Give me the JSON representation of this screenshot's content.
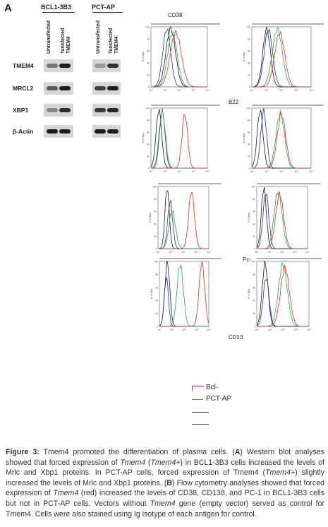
{
  "panel_a": {
    "letter": "A",
    "groups": [
      {
        "label": "BCL1-3B3"
      },
      {
        "label": "PCT-AP"
      }
    ],
    "columns": [
      "Untransfected",
      "Tansfected TMEM4",
      "Untransfected",
      "Tansfected TMEM4"
    ],
    "rows": [
      {
        "label": "TMEM4",
        "intensities": [
          0.45,
          0.95,
          0.25,
          0.85
        ]
      },
      {
        "label": "MRCL2",
        "intensities": [
          0.6,
          0.95,
          0.75,
          0.95
        ]
      },
      {
        "label": "XBP1",
        "intensities": [
          0.35,
          0.85,
          0.8,
          0.9
        ]
      },
      {
        "label": "β-Actin",
        "intensities": [
          0.95,
          0.95,
          0.95,
          0.95
        ]
      }
    ]
  },
  "panel_b": {
    "antigens": [
      "CD38",
      "B22",
      "Pc-",
      "CD13"
    ],
    "y_axis_label": "% of Max",
    "x_tick_labels": [
      "10⁰",
      "10¹",
      "10²",
      "10³",
      "10⁴"
    ],
    "y_tick_labels": [
      "0",
      "20",
      "40",
      "60",
      "80",
      "100"
    ],
    "legend": [
      "Bcl-",
      "PCT-AP",
      "",
      ""
    ],
    "colors": {
      "tmem4": "#d9342b",
      "empty_vector": "#2ea84a",
      "untransfected": "#1a1a1a",
      "isotype": "#2233a0"
    }
  },
  "caption": {
    "figure_label": "Figure 3:",
    "text_1": " Tmem4 promoted the differentiation of plasma cells. (",
    "a_label": "A",
    "text_2": ") Western blot analyses showed that forced expression of ",
    "gene_1": "Tmem4",
    "text_3": " (",
    "gene_2": "Tmem4+",
    "text_4": ") in BCL1-3B3 cells increased the levels of Mrlc and Xbp1 proteins. In PCT-AP cells, forced expression of Tmem4 (",
    "gene_3": "Tmem4+",
    "text_5": ") slightly increased the levels of Mrlc and Xbp1 proteins. (",
    "b_label": "B",
    "text_6": ") Flow cytometry analyses showed that forced expression of ",
    "gene_4": "Tmem4",
    "text_7": " (red) increased the levels of CD38, CD138, and PC-1 in BCL1-3B3 cells but not in PCT-AP cells. Vectors without ",
    "gene_5": "Tmem4",
    "text_8": " gene (empty vector) served as control for Tmem4. Cells were also stained using Ig isotype of each antigen for control."
  }
}
